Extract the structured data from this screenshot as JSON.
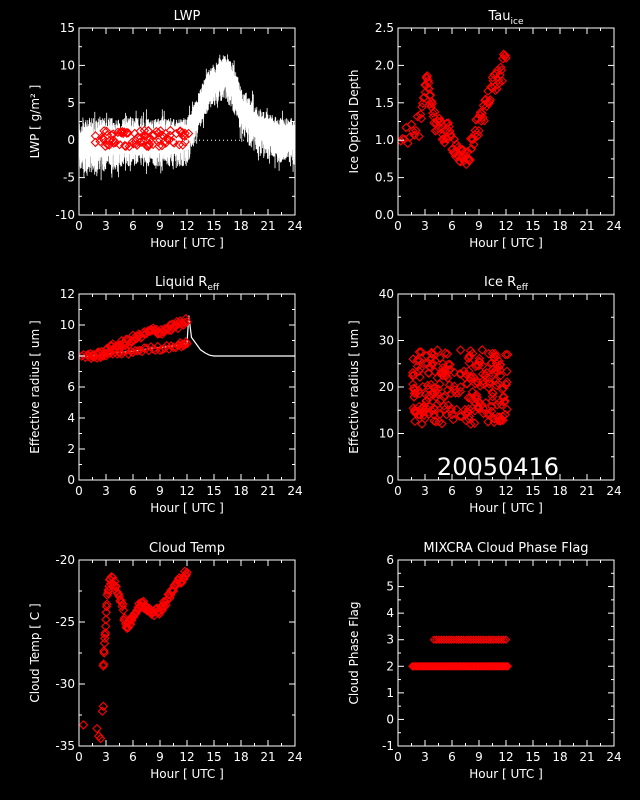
{
  "date_label": "20050416",
  "chart_data": [
    {
      "id": "lwp",
      "type": "line",
      "title": "LWP",
      "title_sub": "",
      "xlabel": "Hour [ UTC ]",
      "ylabel": "LWP [ g/m² ]",
      "xlim": [
        0,
        24
      ],
      "ylim": [
        -10,
        15
      ],
      "xticks": [
        0,
        3,
        6,
        9,
        12,
        15,
        18,
        21,
        24
      ],
      "yticks": [
        -10,
        -5,
        0,
        5,
        10,
        15
      ],
      "series": [
        {
          "kind": "band-line",
          "color": "#ffffff",
          "x": [
            0,
            1,
            2,
            3,
            4,
            5,
            6,
            7,
            8,
            9,
            10,
            11,
            12,
            12.5,
            13,
            13.5,
            14,
            14.5,
            15,
            15.5,
            16,
            16.5,
            17,
            17.5,
            18,
            18.5,
            19,
            19.5,
            20,
            20.5,
            21,
            21.5,
            22,
            22.5,
            23,
            23.5,
            24
          ],
          "y": [
            -0.5,
            -0.3,
            -0.5,
            -0.3,
            -0.2,
            0,
            0,
            0,
            0,
            0,
            0,
            0,
            0,
            1.5,
            3,
            4.5,
            6,
            7,
            7.5,
            8.5,
            9,
            8.5,
            7.5,
            6,
            4.5,
            3.5,
            3,
            2.5,
            2,
            1.8,
            1.5,
            1.2,
            1,
            1,
            0.8,
            0.8,
            0.8
          ],
          "lo": [
            -4,
            -4.5,
            -5,
            -4,
            -4,
            -3.5,
            -3.5,
            -3.5,
            -3.5,
            -3.5,
            -3.5,
            -3.5,
            -3.5,
            -1.5,
            0,
            1.5,
            3,
            4,
            4.5,
            5,
            5.5,
            5,
            4,
            2.5,
            1,
            0,
            -1,
            -1.5,
            -2,
            -2.5,
            -2.5,
            -2.5,
            -3,
            -3,
            -3,
            -3.5,
            -3.5
          ],
          "hi": [
            2.5,
            3,
            3,
            3,
            3,
            3,
            3,
            3,
            3,
            3,
            3,
            3,
            3,
            4,
            5.5,
            7,
            8.5,
            9.5,
            10,
            11,
            11.5,
            11,
            10.5,
            9,
            7.5,
            6.5,
            6,
            5,
            4,
            4,
            3.5,
            3.5,
            3,
            3,
            3,
            3,
            3
          ]
        },
        {
          "kind": "markers",
          "color": "#ff0000",
          "x_range": [
            1.8,
            12.2
          ],
          "y_mean": 0.2,
          "y_jitter": 1.1,
          "count": 90
        },
        {
          "kind": "dotted-line",
          "color": "#ffffff",
          "x": [
            0,
            24
          ],
          "y": [
            0,
            0
          ]
        }
      ]
    },
    {
      "id": "tau",
      "type": "scatter",
      "title": "Tau",
      "title_sub": "ice",
      "xlabel": "Hour [ UTC ]",
      "ylabel": "Ice Optical Depth",
      "xlim": [
        0,
        24
      ],
      "ylim": [
        0,
        2.5
      ],
      "xticks": [
        0,
        3,
        6,
        9,
        12,
        15,
        18,
        21,
        24
      ],
      "yticks": [
        0.0,
        0.5,
        1.0,
        1.5,
        2.0,
        2.5
      ],
      "series": [
        {
          "kind": "marker-curve",
          "color": "#ff0000",
          "jitter": 0.15,
          "per_segment": 6,
          "x": [
            0.3,
            1.5,
            2.5,
            3.0,
            3.3,
            3.6,
            4.0,
            4.5,
            5.0,
            5.5,
            6.0,
            6.5,
            7.0,
            7.5,
            8.0,
            8.5,
            9.0,
            9.5,
            10.0,
            10.5,
            11.0,
            11.5,
            12.0
          ],
          "y": [
            1.1,
            1.1,
            1.2,
            1.6,
            1.8,
            1.6,
            1.3,
            1.15,
            1.1,
            1.1,
            1.0,
            0.9,
            0.75,
            0.7,
            0.85,
            1.1,
            1.2,
            1.35,
            1.6,
            1.75,
            1.8,
            1.9,
            2.1
          ]
        }
      ]
    },
    {
      "id": "liq_reff",
      "type": "line",
      "title": "Liquid R",
      "title_sub": "eff",
      "xlabel": "Hour [ UTC ]",
      "ylabel": "Effective radius [ um ]",
      "xlim": [
        0,
        24
      ],
      "ylim": [
        0,
        12
      ],
      "xticks": [
        0,
        3,
        6,
        9,
        12,
        15,
        18,
        21,
        24
      ],
      "yticks": [
        0,
        2,
        4,
        6,
        8,
        10,
        12
      ],
      "series": [
        {
          "kind": "line",
          "color": "#ffffff",
          "x": [
            0,
            2,
            4,
            6,
            8,
            10,
            12,
            12.2,
            12.5,
            13,
            13.5,
            14,
            14.5,
            15,
            16,
            17,
            18,
            20,
            22,
            24
          ],
          "y": [
            8,
            8,
            8.2,
            8.3,
            8.5,
            8.6,
            8.8,
            10.6,
            9.2,
            8.8,
            8.4,
            8.2,
            8.05,
            8.0,
            8.0,
            8.0,
            8.0,
            8.0,
            8.0,
            8.0
          ]
        },
        {
          "kind": "marker-curve",
          "color": "#ff0000",
          "jitter": 0.25,
          "per_segment": 8,
          "x": [
            0.3,
            2,
            3,
            4,
            5,
            6,
            7,
            8,
            9,
            10,
            11,
            12
          ],
          "y": [
            8,
            8,
            8.3,
            8.6,
            8.8,
            9.1,
            9.3,
            9.6,
            9.6,
            9.8,
            10,
            10.2
          ]
        },
        {
          "kind": "marker-curve",
          "color": "#ff0000",
          "jitter": 0.15,
          "per_segment": 8,
          "x": [
            1,
            3,
            5,
            7,
            9,
            11,
            12
          ],
          "y": [
            8,
            8.1,
            8.2,
            8.4,
            8.5,
            8.7,
            8.8
          ]
        }
      ]
    },
    {
      "id": "ice_reff",
      "type": "scatter",
      "title": "Ice R",
      "title_sub": "eff",
      "xlabel": "Hour [ UTC ]",
      "ylabel": "Effective radius [ um ]",
      "xlim": [
        0,
        24
      ],
      "ylim": [
        0,
        40
      ],
      "xticks": [
        0,
        3,
        6,
        9,
        12,
        15,
        18,
        21,
        24
      ],
      "yticks": [
        0,
        10,
        20,
        30,
        40
      ],
      "series": [
        {
          "kind": "markers",
          "color": "#ff0000",
          "x_range": [
            1.6,
            12.2
          ],
          "y_mean": 20,
          "y_jitter": 8,
          "count": 260
        }
      ]
    },
    {
      "id": "cloud_temp",
      "type": "scatter",
      "title": "Cloud Temp",
      "title_sub": "",
      "xlabel": "Hour [ UTC ]",
      "ylabel": "Cloud Temp [ C ]",
      "xlim": [
        0,
        24
      ],
      "ylim": [
        -35,
        -20
      ],
      "xticks": [
        0,
        3,
        6,
        9,
        12,
        15,
        18,
        21,
        24
      ],
      "yticks": [
        -35,
        -30,
        -25,
        -20
      ],
      "series": [
        {
          "kind": "points",
          "color": "#ff0000",
          "x": [
            0.5,
            2.0,
            2.2,
            2.4,
            2.6,
            2.7
          ],
          "y": [
            -33.3,
            -33.6,
            -34.2,
            -34.4,
            -32.2,
            -31.8
          ]
        },
        {
          "kind": "marker-curve",
          "color": "#ff0000",
          "jitter": 0.35,
          "per_segment": 6,
          "x": [
            2.7,
            2.9,
            3.1,
            3.4,
            3.8,
            4.3,
            4.8,
            5.2,
            5.6,
            6.0,
            6.5,
            7.0,
            7.5,
            8.0,
            8.5,
            9.0,
            9.5,
            10.0,
            10.5,
            11.0,
            11.5,
            12.0
          ],
          "y": [
            -28.5,
            -26,
            -23.5,
            -21.5,
            -21.8,
            -22.5,
            -23.5,
            -25.5,
            -25,
            -24.5,
            -24,
            -23.5,
            -23.8,
            -24,
            -24.2,
            -24,
            -23.5,
            -23,
            -22.3,
            -21.8,
            -21.4,
            -21
          ]
        }
      ]
    },
    {
      "id": "phase",
      "type": "scatter",
      "title": "MIXCRA Cloud Phase Flag",
      "title_sub": "",
      "xlabel": "Hour [ UTC ]",
      "ylabel": "Cloud Phase Flag",
      "xlim": [
        0,
        24
      ],
      "ylim": [
        -1,
        6
      ],
      "xticks": [
        0,
        3,
        6,
        9,
        12,
        15,
        18,
        21,
        24
      ],
      "yticks": [
        -1,
        0,
        1,
        2,
        3,
        4,
        5,
        6
      ],
      "series": [
        {
          "kind": "row",
          "color": "#ff0000",
          "x_range": [
            1.6,
            12.2
          ],
          "y": 2,
          "count": 70
        },
        {
          "kind": "row",
          "color": "#ff0000",
          "x_range": [
            4.0,
            12.0
          ],
          "y": 3,
          "count": 30
        }
      ]
    }
  ]
}
